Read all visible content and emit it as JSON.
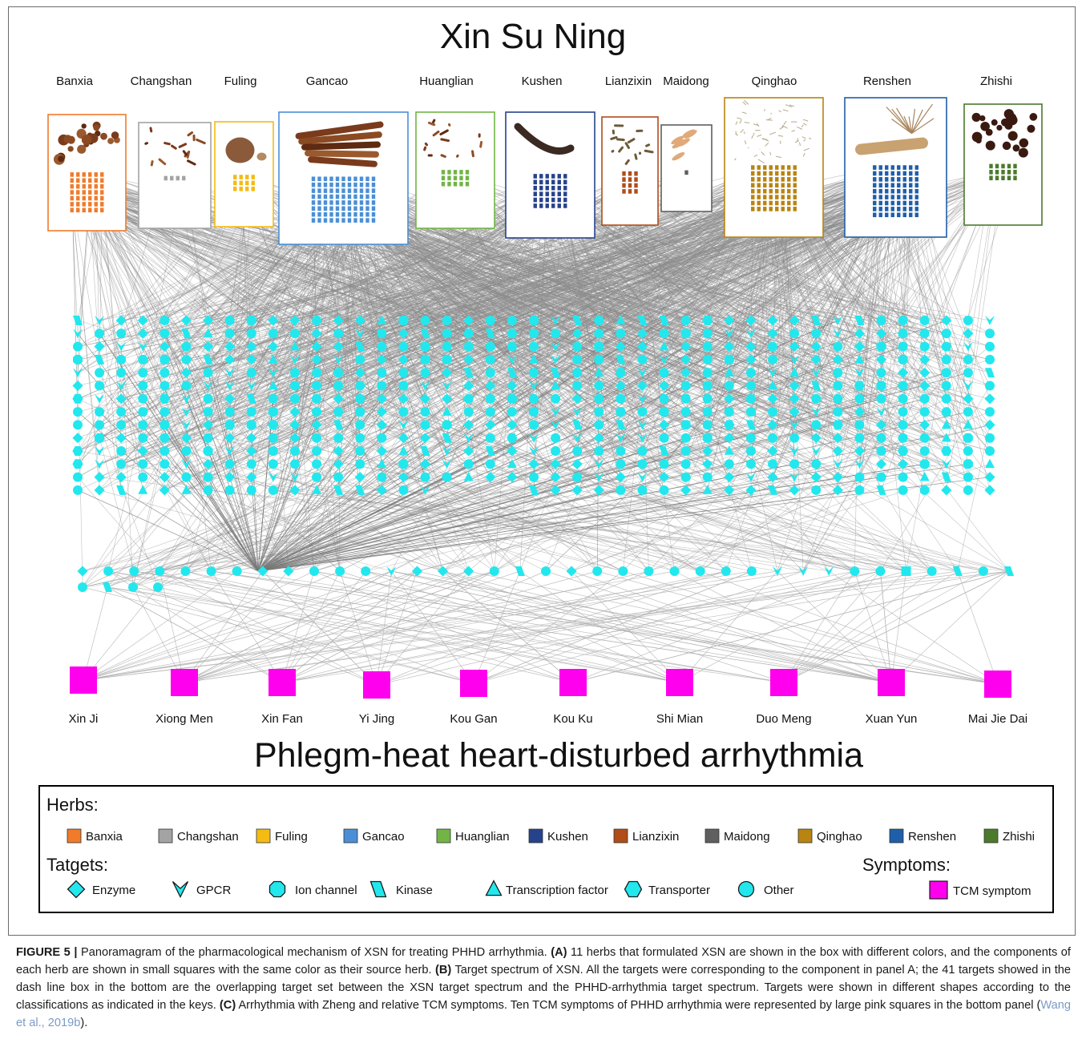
{
  "title": "Xin Su Ning",
  "bottom_title": "Phlegm-heat heart-disturbed arrhythmia",
  "herbs": [
    {
      "name": "Banxia",
      "color": "#f07b2a",
      "cols": 6,
      "rows": 7,
      "photo": "nuts"
    },
    {
      "name": "Changshan",
      "color": "#a3a3a3",
      "cols": 4,
      "rows": 1,
      "photo": "roots"
    },
    {
      "name": "Fuling",
      "color": "#f5bb12",
      "cols": 4,
      "rows": 3,
      "photo": "lump"
    },
    {
      "name": "Gancao",
      "color": "#4a8fd6",
      "cols": 11,
      "rows": 8,
      "photo": "sticks"
    },
    {
      "name": "Huanglian",
      "color": "#72b446",
      "cols": 5,
      "rows": 3,
      "photo": "rhizome"
    },
    {
      "name": "Kushen",
      "color": "#26428b",
      "cols": 6,
      "rows": 6,
      "photo": "root"
    },
    {
      "name": "Lianzixin",
      "color": "#b14d18",
      "cols": 3,
      "rows": 4,
      "photo": "flakes"
    },
    {
      "name": "Maidong",
      "color": "#5f5f5f",
      "cols": 1,
      "rows": 1,
      "photo": "tubers"
    },
    {
      "name": "Qinghao",
      "color": "#b88412",
      "cols": 8,
      "rows": 8,
      "photo": "herb"
    },
    {
      "name": "Renshen",
      "color": "#1f5ea8",
      "cols": 8,
      "rows": 9,
      "photo": "ginseng"
    },
    {
      "name": "Zhishi",
      "color": "#4b7a2c",
      "cols": 5,
      "rows": 3,
      "photo": "fruits"
    }
  ],
  "target_color": "#22e8ee",
  "symptom_color": "#ff00ee",
  "symptoms": [
    "Xin Ji",
    "Xiong Men",
    "Xin Fan",
    "Yi Jing",
    "Kou Gan",
    "Kou Ku",
    "Shi Mian",
    "Duo Meng",
    "Xuan Yun",
    "Mai Jie Dai"
  ],
  "legend": {
    "herbs_label": "Herbs:",
    "targets_label": "Tatgets:",
    "symptoms_label": "Symptoms:",
    "target_types": [
      {
        "label": "Enzyme",
        "shape": "diamond"
      },
      {
        "label": "GPCR",
        "shape": "vee"
      },
      {
        "label": "Ion channel",
        "shape": "octagon"
      },
      {
        "label": "Kinase",
        "shape": "parallelogram"
      },
      {
        "label": "Transcription factor",
        "shape": "triangle"
      },
      {
        "label": "Transporter",
        "shape": "hexagon"
      },
      {
        "label": "Other",
        "shape": "circle"
      }
    ],
    "symptom_type": "TCM symptom"
  },
  "caption": {
    "lead": "FIGURE 5 |",
    "t1": " Panoramagram of the pharmacological mechanism of XSN for treating PHHD arrhythmia. ",
    "a": "(A)",
    "t2": " 11 herbs that formulated XSN are shown in the box with different colors, and the components of each herb are shown in small squares with the same color as their source herb. ",
    "b": "(B)",
    "t3": " Target spectrum of XSN. All the targets were corresponding to the component in panel A; the 41 targets showed in the dash line box in the bottom are the overlapping target set between the XSN target spectrum and the PHHD-arrhythmia target spectrum. Targets were shown in different shapes according to the classifications as indicated in the keys. ",
    "c": "(C)",
    "t4": " Arrhythmia with Zheng and relative TCM symptoms. Ten TCM symptoms of PHHD arrhythmia were represented by large pink squares in the bottom panel (",
    "ref": "Wang et al., 2019b",
    "t5": ")."
  }
}
